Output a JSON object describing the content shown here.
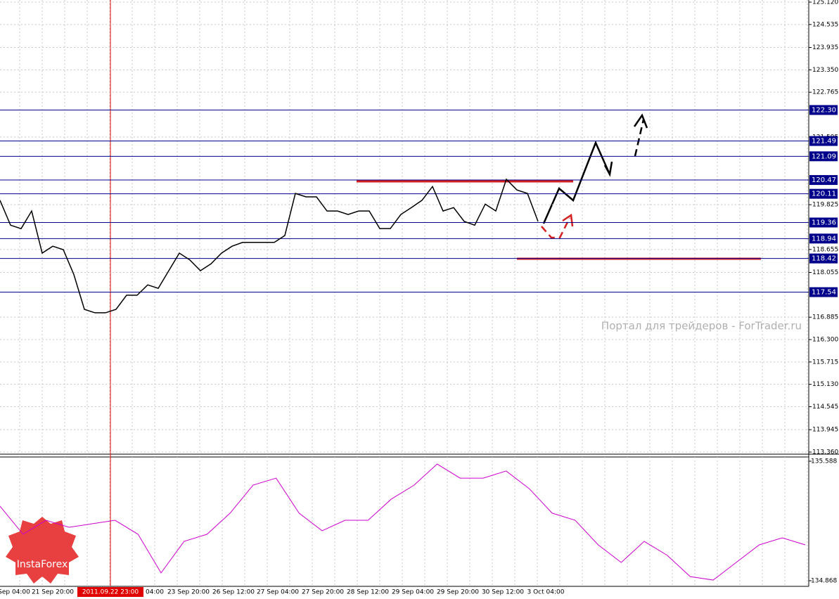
{
  "chart_data": {
    "type": "price-chart",
    "price": [
      119.94,
      119.29,
      119.2,
      119.66,
      118.56,
      118.74,
      118.65,
      118.0,
      117.09,
      117.0,
      117.0,
      117.09,
      117.46,
      117.46,
      117.73,
      117.64,
      118.1,
      118.56,
      118.38,
      118.1,
      118.28,
      118.56,
      118.74,
      118.84,
      118.84,
      118.84,
      118.84,
      119.02,
      120.12,
      120.03,
      120.03,
      119.66,
      119.66,
      119.57,
      119.66,
      119.66,
      119.2,
      119.2,
      119.57,
      119.75,
      119.94,
      120.3,
      119.66,
      119.75,
      119.39,
      119.29,
      119.84,
      119.66,
      120.49,
      120.21,
      120.12,
      119.39
    ],
    "price_color": "#000000",
    "ylim": [
      113.36,
      125.12
    ],
    "yticks": [
      {
        "value": 125.12,
        "label": "125.120"
      },
      {
        "value": 124.535,
        "label": "124.535"
      },
      {
        "value": 123.935,
        "label": "123.935"
      },
      {
        "value": 123.35,
        "label": "123.350"
      },
      {
        "value": 122.765,
        "label": "122.765"
      },
      {
        "value": 121.595,
        "label": "121.595"
      },
      {
        "value": 119.825,
        "label": "119.825"
      },
      {
        "value": 118.655,
        "label": "118.655"
      },
      {
        "value": 118.055,
        "label": "118.055"
      },
      {
        "value": 116.885,
        "label": "116.885"
      },
      {
        "value": 116.3,
        "label": "116.300"
      },
      {
        "value": 115.715,
        "label": "115.715"
      },
      {
        "value": 115.13,
        "label": "115.130"
      },
      {
        "value": 114.545,
        "label": "114.545"
      },
      {
        "value": 113.945,
        "label": "113.945"
      },
      {
        "value": 113.36,
        "label": "113.360"
      }
    ],
    "levels": [
      {
        "value": 122.3,
        "label": "122.30"
      },
      121.49,
      121.09,
      120.47,
      120.11,
      119.36,
      118.94,
      118.42,
      117.54
    ],
    "level_color": "#00008b",
    "indicator": [
      135.317,
      135.148,
      135.232,
      135.19,
      135.211,
      135.232,
      135.148,
      134.915,
      135.105,
      135.148,
      135.275,
      135.444,
      135.486,
      135.275,
      135.169,
      135.232,
      135.232,
      135.359,
      135.444,
      135.571,
      135.486,
      135.486,
      135.529,
      135.423,
      135.275,
      135.232,
      135.084,
      134.978,
      135.105,
      135.021,
      134.893,
      134.872,
      134.978,
      135.084,
      135.126,
      135.084
    ],
    "indicator_color": "#cc00cc",
    "y2lim": [
      134.868,
      135.588
    ],
    "y2ticks": [
      135.588,
      134.868
    ],
    "x_labels": [
      "Sep 04:00",
      "21 Sep 20:00",
      "2011.09.22 23:00",
      "04:00",
      "23 Sep 20:00",
      "26 Sep 12:00",
      "27 Sep 04:00",
      "27 Sep 20:00",
      "28 Sep 12:00",
      "29 Sep 04:00",
      "29 Sep 20:00",
      "30 Sep 12:00",
      "3 Oct 04:00"
    ],
    "watermark": "Портал для трейдеров - ForTrader.ru",
    "logo": "InstaForex"
  }
}
